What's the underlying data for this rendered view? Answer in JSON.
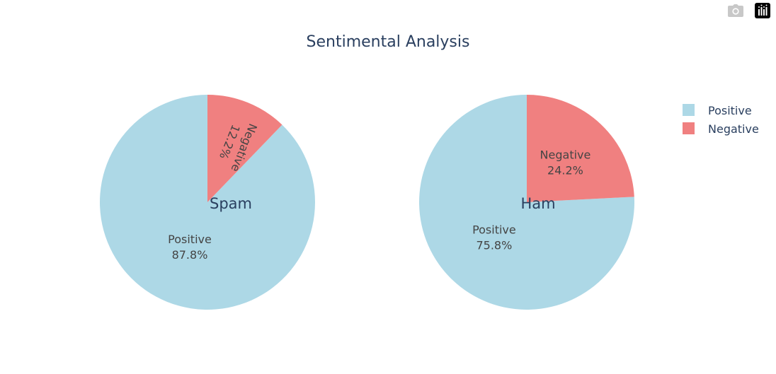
{
  "modebar": {
    "camera_icon": "camera-icon",
    "plotly_icon": "plotly-logo-icon"
  },
  "chart_data": {
    "type": "pie",
    "title": "Sentimental Analysis",
    "legend": {
      "placement": "top-right",
      "entries": [
        "Positive",
        "Negative"
      ]
    },
    "colors": {
      "Positive": "#add8e6",
      "Negative": "#f08080"
    },
    "pies": [
      {
        "name": "Spam",
        "labels": [
          "Positive",
          "Negative"
        ],
        "values": [
          87.8,
          12.2
        ],
        "text": [
          "87.8%",
          "12.2%"
        ]
      },
      {
        "name": "Ham",
        "labels": [
          "Positive",
          "Negative"
        ],
        "values": [
          75.8,
          24.2
        ],
        "text": [
          "75.8%",
          "24.2%"
        ]
      }
    ]
  }
}
